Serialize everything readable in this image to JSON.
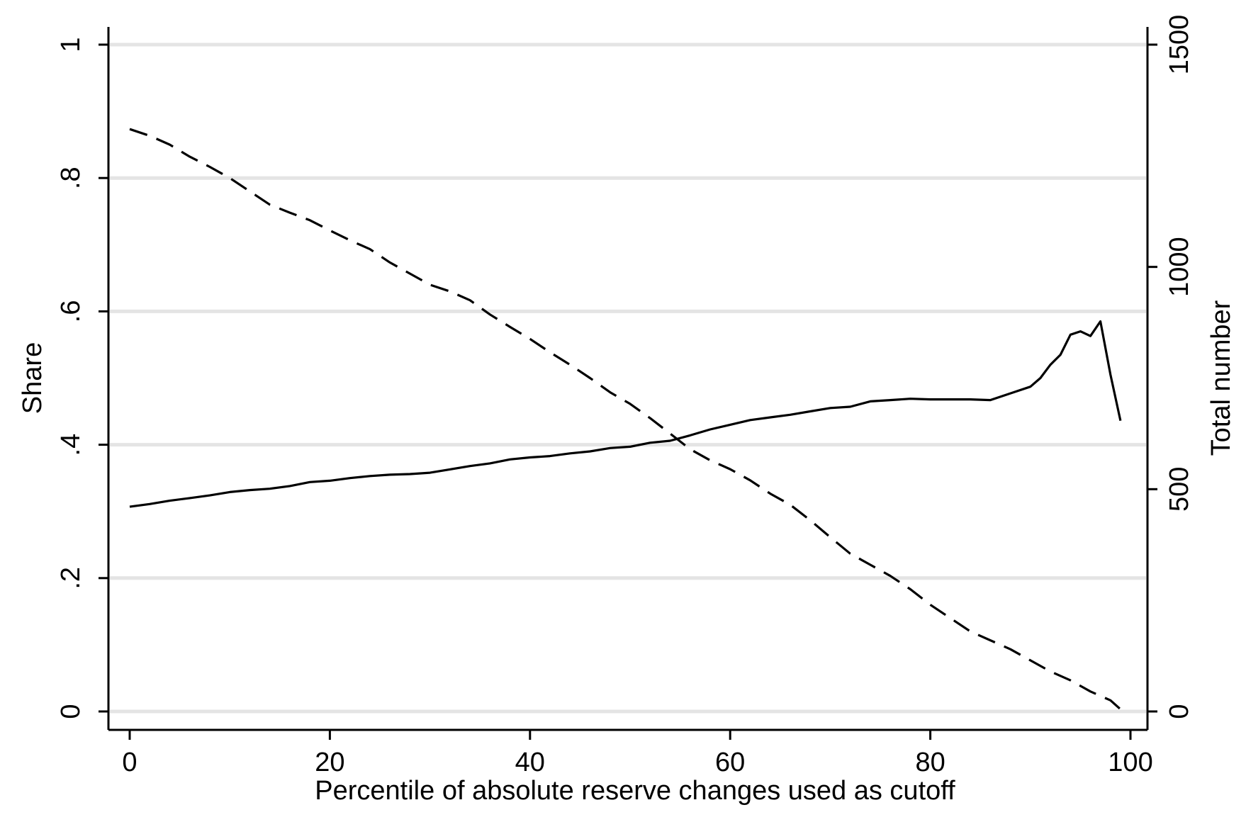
{
  "chart_data": {
    "type": "line",
    "title": "",
    "xlabel": "Percentile of absolute reserve changes used as cutoff",
    "ylabel_left": "Share",
    "ylabel_right": "Total number",
    "xlim": [
      0,
      100
    ],
    "ylim_left": [
      0,
      1
    ],
    "ylim_right": [
      0,
      1500
    ],
    "x_ticks": [
      {
        "value": 0,
        "label": "0"
      },
      {
        "value": 20,
        "label": "20"
      },
      {
        "value": 40,
        "label": "40"
      },
      {
        "value": 60,
        "label": "60"
      },
      {
        "value": 80,
        "label": "80"
      },
      {
        "value": 100,
        "label": "100"
      }
    ],
    "y_ticks_left": [
      {
        "value": 0,
        "label": "0"
      },
      {
        "value": 0.2,
        "label": ".2"
      },
      {
        "value": 0.4,
        "label": ".4"
      },
      {
        "value": 0.6,
        "label": ".6"
      },
      {
        "value": 0.8,
        "label": ".8"
      },
      {
        "value": 1,
        "label": "1"
      }
    ],
    "y_ticks_right": [
      {
        "value": 0,
        "label": "0"
      },
      {
        "value": 500,
        "label": "500"
      },
      {
        "value": 1000,
        "label": "1000"
      },
      {
        "value": 1500,
        "label": "1500"
      }
    ],
    "grid": true,
    "legend": "none",
    "series": [
      {
        "axis": "left",
        "style": "solid",
        "x": [
          0,
          2,
          4,
          6,
          8,
          10,
          12,
          14,
          16,
          18,
          20,
          22,
          24,
          26,
          28,
          30,
          32,
          34,
          36,
          38,
          40,
          42,
          44,
          46,
          48,
          50,
          52,
          54,
          56,
          58,
          60,
          62,
          64,
          66,
          68,
          70,
          72,
          74,
          76,
          78,
          80,
          82,
          84,
          86,
          88,
          90,
          91,
          92,
          93,
          94,
          95,
          96,
          97,
          98,
          99
        ],
        "values": [
          0.307,
          0.311,
          0.316,
          0.32,
          0.324,
          0.329,
          0.332,
          0.334,
          0.338,
          0.344,
          0.346,
          0.35,
          0.353,
          0.355,
          0.356,
          0.358,
          0.363,
          0.368,
          0.372,
          0.378,
          0.381,
          0.383,
          0.387,
          0.39,
          0.395,
          0.397,
          0.403,
          0.406,
          0.414,
          0.423,
          0.43,
          0.437,
          0.441,
          0.445,
          0.45,
          0.455,
          0.457,
          0.465,
          0.467,
          0.469,
          0.468,
          0.468,
          0.468,
          0.467,
          0.477,
          0.487,
          0.5,
          0.52,
          0.535,
          0.565,
          0.57,
          0.563,
          0.585,
          0.505,
          0.436
        ]
      },
      {
        "axis": "right",
        "style": "dashed",
        "x": [
          0,
          2,
          4,
          6,
          8,
          10,
          12,
          14,
          16,
          18,
          20,
          22,
          24,
          26,
          28,
          30,
          32,
          34,
          36,
          38,
          40,
          42,
          44,
          46,
          48,
          50,
          52,
          54,
          56,
          58,
          60,
          62,
          64,
          66,
          68,
          70,
          72,
          74,
          76,
          78,
          80,
          82,
          84,
          86,
          88,
          90,
          92,
          94,
          96,
          98,
          99
        ],
        "values": [
          1310,
          1295,
          1275,
          1248,
          1225,
          1200,
          1170,
          1140,
          1122,
          1105,
          1082,
          1060,
          1040,
          1010,
          985,
          960,
          945,
          925,
          893,
          865,
          838,
          808,
          780,
          750,
          718,
          692,
          660,
          625,
          590,
          565,
          545,
          520,
          490,
          465,
          430,
          392,
          355,
          330,
          305,
          275,
          240,
          210,
          180,
          160,
          140,
          115,
          90,
          70,
          45,
          25,
          5
        ]
      }
    ]
  }
}
